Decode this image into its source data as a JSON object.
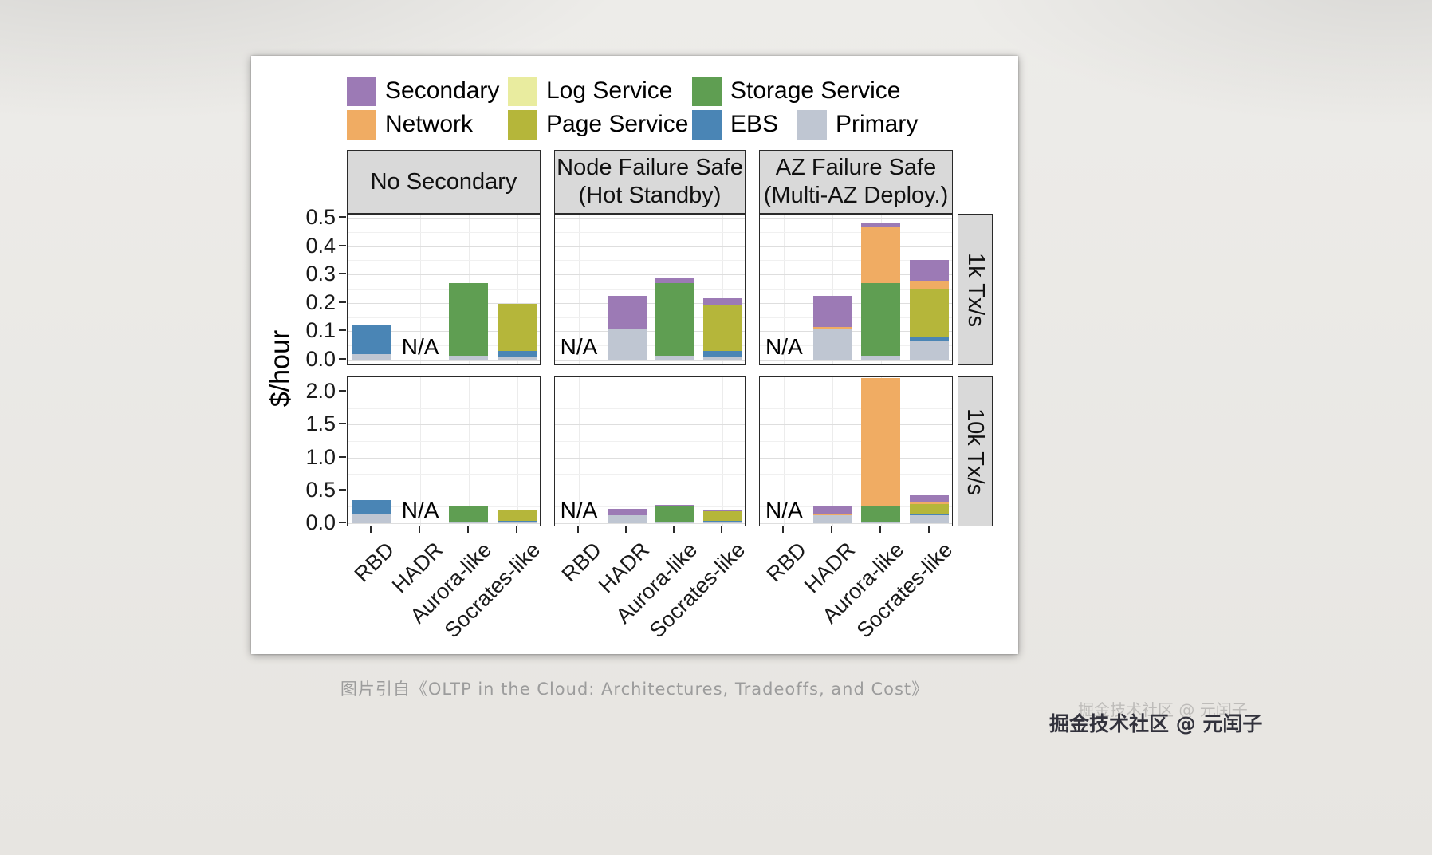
{
  "page": {
    "caption": "图片引自《OLTP in the Cloud: Architectures, Tradeoffs, and Cost》",
    "watermark": "掘金技术社区 @ 元闰子",
    "watermark_faint": "掘金技术社区 @ 元闰子"
  },
  "chart_data": {
    "type": "bar",
    "stacked": true,
    "title": "",
    "xlabel": "",
    "ylabel": "$/hour",
    "na_label": "N/A",
    "categories": [
      "RBD",
      "HADR",
      "Aurora-like",
      "Socrates-like"
    ],
    "legend": [
      {
        "label": "Secondary",
        "color": "#9c7ab5"
      },
      {
        "label": "Log Service",
        "color": "#e9ec9f"
      },
      {
        "label": "Storage Service",
        "color": "#5f9e52"
      },
      {
        "label": "Network",
        "color": "#f0ac63"
      },
      {
        "label": "Page Service",
        "color": "#b5b63a"
      },
      {
        "label": "EBS",
        "color": "#4a85b5"
      },
      {
        "label": "Primary",
        "color": "#bfc6d2"
      }
    ],
    "stack_order": [
      "Primary",
      "EBS",
      "Page Service",
      "Storage Service",
      "Log Service",
      "Network",
      "Secondary"
    ],
    "facet_columns": [
      {
        "title_lines": [
          "No Secondary"
        ]
      },
      {
        "title_lines": [
          "Node Failure Safe",
          "(Hot Standby)"
        ]
      },
      {
        "title_lines": [
          "AZ Failure Safe",
          "(Multi-AZ Deploy.)"
        ]
      }
    ],
    "facet_rows": [
      {
        "label": "1k Tx/s",
        "ylim": [
          0,
          0.5
        ],
        "yticks": [
          {
            "v": 0,
            "label": "0.0"
          },
          {
            "v": 0.1,
            "label": "0.1"
          },
          {
            "v": 0.2,
            "label": "0.2"
          },
          {
            "v": 0.3,
            "label": "0.3"
          },
          {
            "v": 0.4,
            "label": "0.4"
          },
          {
            "v": 0.5,
            "label": "0.5"
          }
        ]
      },
      {
        "label": "10k Tx/s",
        "ylim": [
          0,
          2.0
        ],
        "yticks": [
          {
            "v": 0,
            "label": "0.0"
          },
          {
            "v": 0.5,
            "label": "0.5"
          },
          {
            "v": 1,
            "label": "1.0"
          },
          {
            "v": 1.5,
            "label": "1.5"
          },
          {
            "v": 2,
            "label": "2.0"
          }
        ]
      }
    ],
    "panels": [
      {
        "facet_row": "1k Tx/s",
        "facet_col": "No Secondary",
        "bars": [
          {
            "category": "RBD",
            "segments": {
              "Primary": 0.02,
              "EBS": 0.105
            }
          },
          {
            "category": "HADR",
            "na": true
          },
          {
            "category": "Aurora-like",
            "segments": {
              "Primary": 0.015,
              "Storage Service": 0.255
            }
          },
          {
            "category": "Socrates-like",
            "segments": {
              "Primary": 0.012,
              "EBS": 0.02,
              "Page Service": 0.165
            }
          }
        ]
      },
      {
        "facet_row": "1k Tx/s",
        "facet_col": "Node Failure Safe (Hot Standby)",
        "bars": [
          {
            "category": "RBD",
            "na": true
          },
          {
            "category": "HADR",
            "segments": {
              "Primary": 0.11,
              "Secondary": 0.115
            }
          },
          {
            "category": "Aurora-like",
            "segments": {
              "Primary": 0.015,
              "Storage Service": 0.255,
              "Secondary": 0.02
            }
          },
          {
            "category": "Socrates-like",
            "segments": {
              "Primary": 0.012,
              "EBS": 0.02,
              "Page Service": 0.16,
              "Secondary": 0.025
            }
          }
        ]
      },
      {
        "facet_row": "1k Tx/s",
        "facet_col": "AZ Failure Safe (Multi-AZ Deploy.)",
        "bars": [
          {
            "category": "RBD",
            "na": true
          },
          {
            "category": "HADR",
            "segments": {
              "Primary": 0.11,
              "Network": 0.006,
              "Secondary": 0.11
            }
          },
          {
            "category": "Aurora-like",
            "segments": {
              "Primary": 0.015,
              "Storage Service": 0.255,
              "Network": 0.2,
              "Secondary": 0.012
            }
          },
          {
            "category": "Socrates-like",
            "segments": {
              "Primary": 0.065,
              "EBS": 0.016,
              "Page Service": 0.17,
              "Network": 0.028,
              "Secondary": 0.073
            }
          }
        ]
      },
      {
        "facet_row": "10k Tx/s",
        "facet_col": "No Secondary",
        "bars": [
          {
            "category": "RBD",
            "segments": {
              "Primary": 0.15,
              "EBS": 0.2
            }
          },
          {
            "category": "HADR",
            "na": true
          },
          {
            "category": "Aurora-like",
            "segments": {
              "Primary": 0.03,
              "Storage Service": 0.24
            }
          },
          {
            "category": "Socrates-like",
            "segments": {
              "Primary": 0.02,
              "EBS": 0.02,
              "Page Service": 0.15
            }
          }
        ]
      },
      {
        "facet_row": "10k Tx/s",
        "facet_col": "Node Failure Safe (Hot Standby)",
        "bars": [
          {
            "category": "RBD",
            "na": true
          },
          {
            "category": "HADR",
            "segments": {
              "Primary": 0.12,
              "Secondary": 0.1
            }
          },
          {
            "category": "Aurora-like",
            "segments": {
              "Primary": 0.03,
              "Storage Service": 0.23,
              "Secondary": 0.02
            }
          },
          {
            "category": "Socrates-like",
            "segments": {
              "Primary": 0.02,
              "EBS": 0.02,
              "Page Service": 0.14,
              "Secondary": 0.03
            }
          }
        ]
      },
      {
        "facet_row": "10k Tx/s",
        "facet_col": "AZ Failure Safe (Multi-AZ Deploy.)",
        "bars": [
          {
            "category": "RBD",
            "na": true
          },
          {
            "category": "HADR",
            "segments": {
              "Primary": 0.12,
              "Network": 0.02,
              "Secondary": 0.13
            }
          },
          {
            "category": "Aurora-like",
            "segments": {
              "Primary": 0.03,
              "Storage Service": 0.23,
              "Network": 1.94
            }
          },
          {
            "category": "Socrates-like",
            "segments": {
              "Primary": 0.12,
              "EBS": 0.02,
              "Page Service": 0.15,
              "Network": 0.03,
              "Secondary": 0.1
            }
          }
        ]
      }
    ]
  }
}
